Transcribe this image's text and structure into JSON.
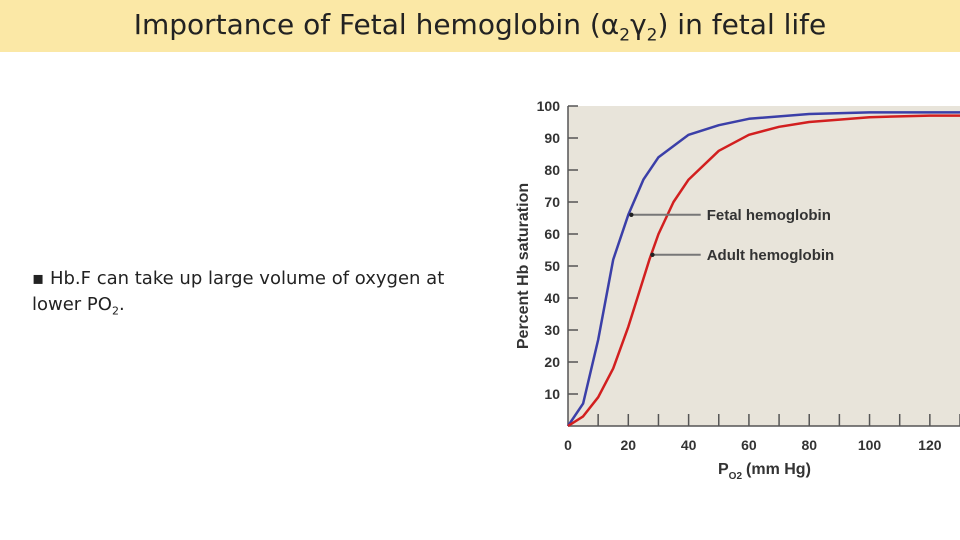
{
  "slide": {
    "title_main": "Importance of Fetal hemoglobin (α",
    "title_sub1": "2",
    "title_mid": "γ",
    "title_sub2": "2",
    "title_end": ") in fetal life",
    "bullet_marker": "▪",
    "bullet_text": "Hb.F can take up large volume of oxygen at lower PO",
    "bullet_sub": "2",
    "bullet_end": "."
  },
  "chart_data": {
    "type": "line",
    "title": "",
    "xlabel": "P",
    "xlabel_sub": "O2",
    "xlabel_unit": "(mm Hg)",
    "ylabel": "Percent Hb saturation",
    "xlim": [
      0,
      130
    ],
    "ylim": [
      0,
      100
    ],
    "xticks": [
      0,
      20,
      40,
      60,
      80,
      100,
      120
    ],
    "yticks": [
      10,
      20,
      30,
      40,
      50,
      60,
      70,
      80,
      90,
      100
    ],
    "grid": false,
    "plot_background": "#e8e4da",
    "series": [
      {
        "name": "Fetal hemoglobin",
        "color": "#3b3fa8",
        "x": [
          0,
          5,
          10,
          15,
          20,
          25,
          30,
          40,
          50,
          60,
          80,
          100,
          120,
          130
        ],
        "y": [
          0,
          7,
          27,
          52,
          66,
          77,
          84,
          91,
          94,
          96,
          97.5,
          98,
          98,
          98
        ]
      },
      {
        "name": "Adult hemoglobin",
        "color": "#d21f1f",
        "x": [
          0,
          5,
          10,
          15,
          20,
          25,
          27,
          30,
          35,
          40,
          50,
          60,
          70,
          80,
          100,
          120,
          130
        ],
        "y": [
          0,
          3,
          9,
          18,
          31,
          46,
          52,
          60,
          70,
          77,
          86,
          91,
          93.5,
          95,
          96.5,
          97,
          97
        ]
      }
    ],
    "annotations": [
      {
        "label": "Fetal hemoglobin",
        "series": "Fetal hemoglobin",
        "x": 21,
        "y": 66
      },
      {
        "label": "Adult hemoglobin",
        "series": "Adult hemoglobin",
        "x": 28,
        "y": 53.5
      }
    ]
  }
}
